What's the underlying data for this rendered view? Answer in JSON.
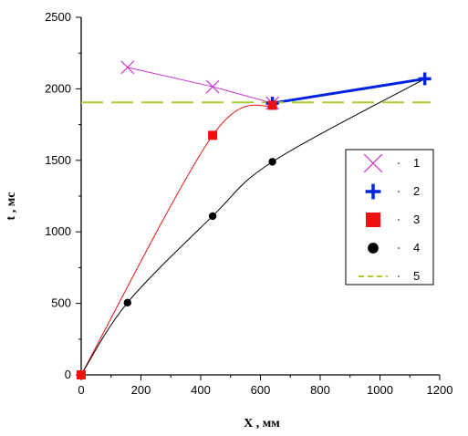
{
  "chart_data": {
    "type": "scatter",
    "title": "",
    "xlabel": "X , мм",
    "ylabel": "t , мс",
    "xlim": [
      0,
      1200
    ],
    "ylim": [
      0,
      2500
    ],
    "xticks": [
      "0",
      "200",
      "400",
      "600",
      "800",
      "1000",
      "1200"
    ],
    "yticks": [
      "0",
      "500",
      "1000",
      "1500",
      "2000",
      "2500"
    ],
    "grid": false,
    "legend_position": "right",
    "series": [
      {
        "name": "1",
        "marker": "x",
        "color": "#cc33cc",
        "line": true,
        "points": [
          [
            155,
            2150
          ],
          [
            440,
            2015
          ],
          [
            640,
            1900
          ]
        ]
      },
      {
        "name": "2",
        "marker": "plus",
        "color": "#0022dd",
        "line": true,
        "points": [
          [
            640,
            1900
          ],
          [
            1150,
            2070
          ]
        ]
      },
      {
        "name": "3",
        "marker": "square",
        "color": "#ee1111",
        "line": "curve",
        "points": [
          [
            0,
            0
          ],
          [
            440,
            1675
          ],
          [
            640,
            1885
          ]
        ]
      },
      {
        "name": "4",
        "marker": "circle",
        "color": "#000000",
        "line": "curve",
        "points": [
          [
            0,
            0
          ],
          [
            155,
            505
          ],
          [
            440,
            1110
          ],
          [
            640,
            1490
          ],
          [
            1150,
            2070
          ]
        ]
      },
      {
        "name": "5",
        "marker": "dash",
        "color": "#aacc33",
        "line": "hline",
        "value": 1905
      }
    ]
  }
}
